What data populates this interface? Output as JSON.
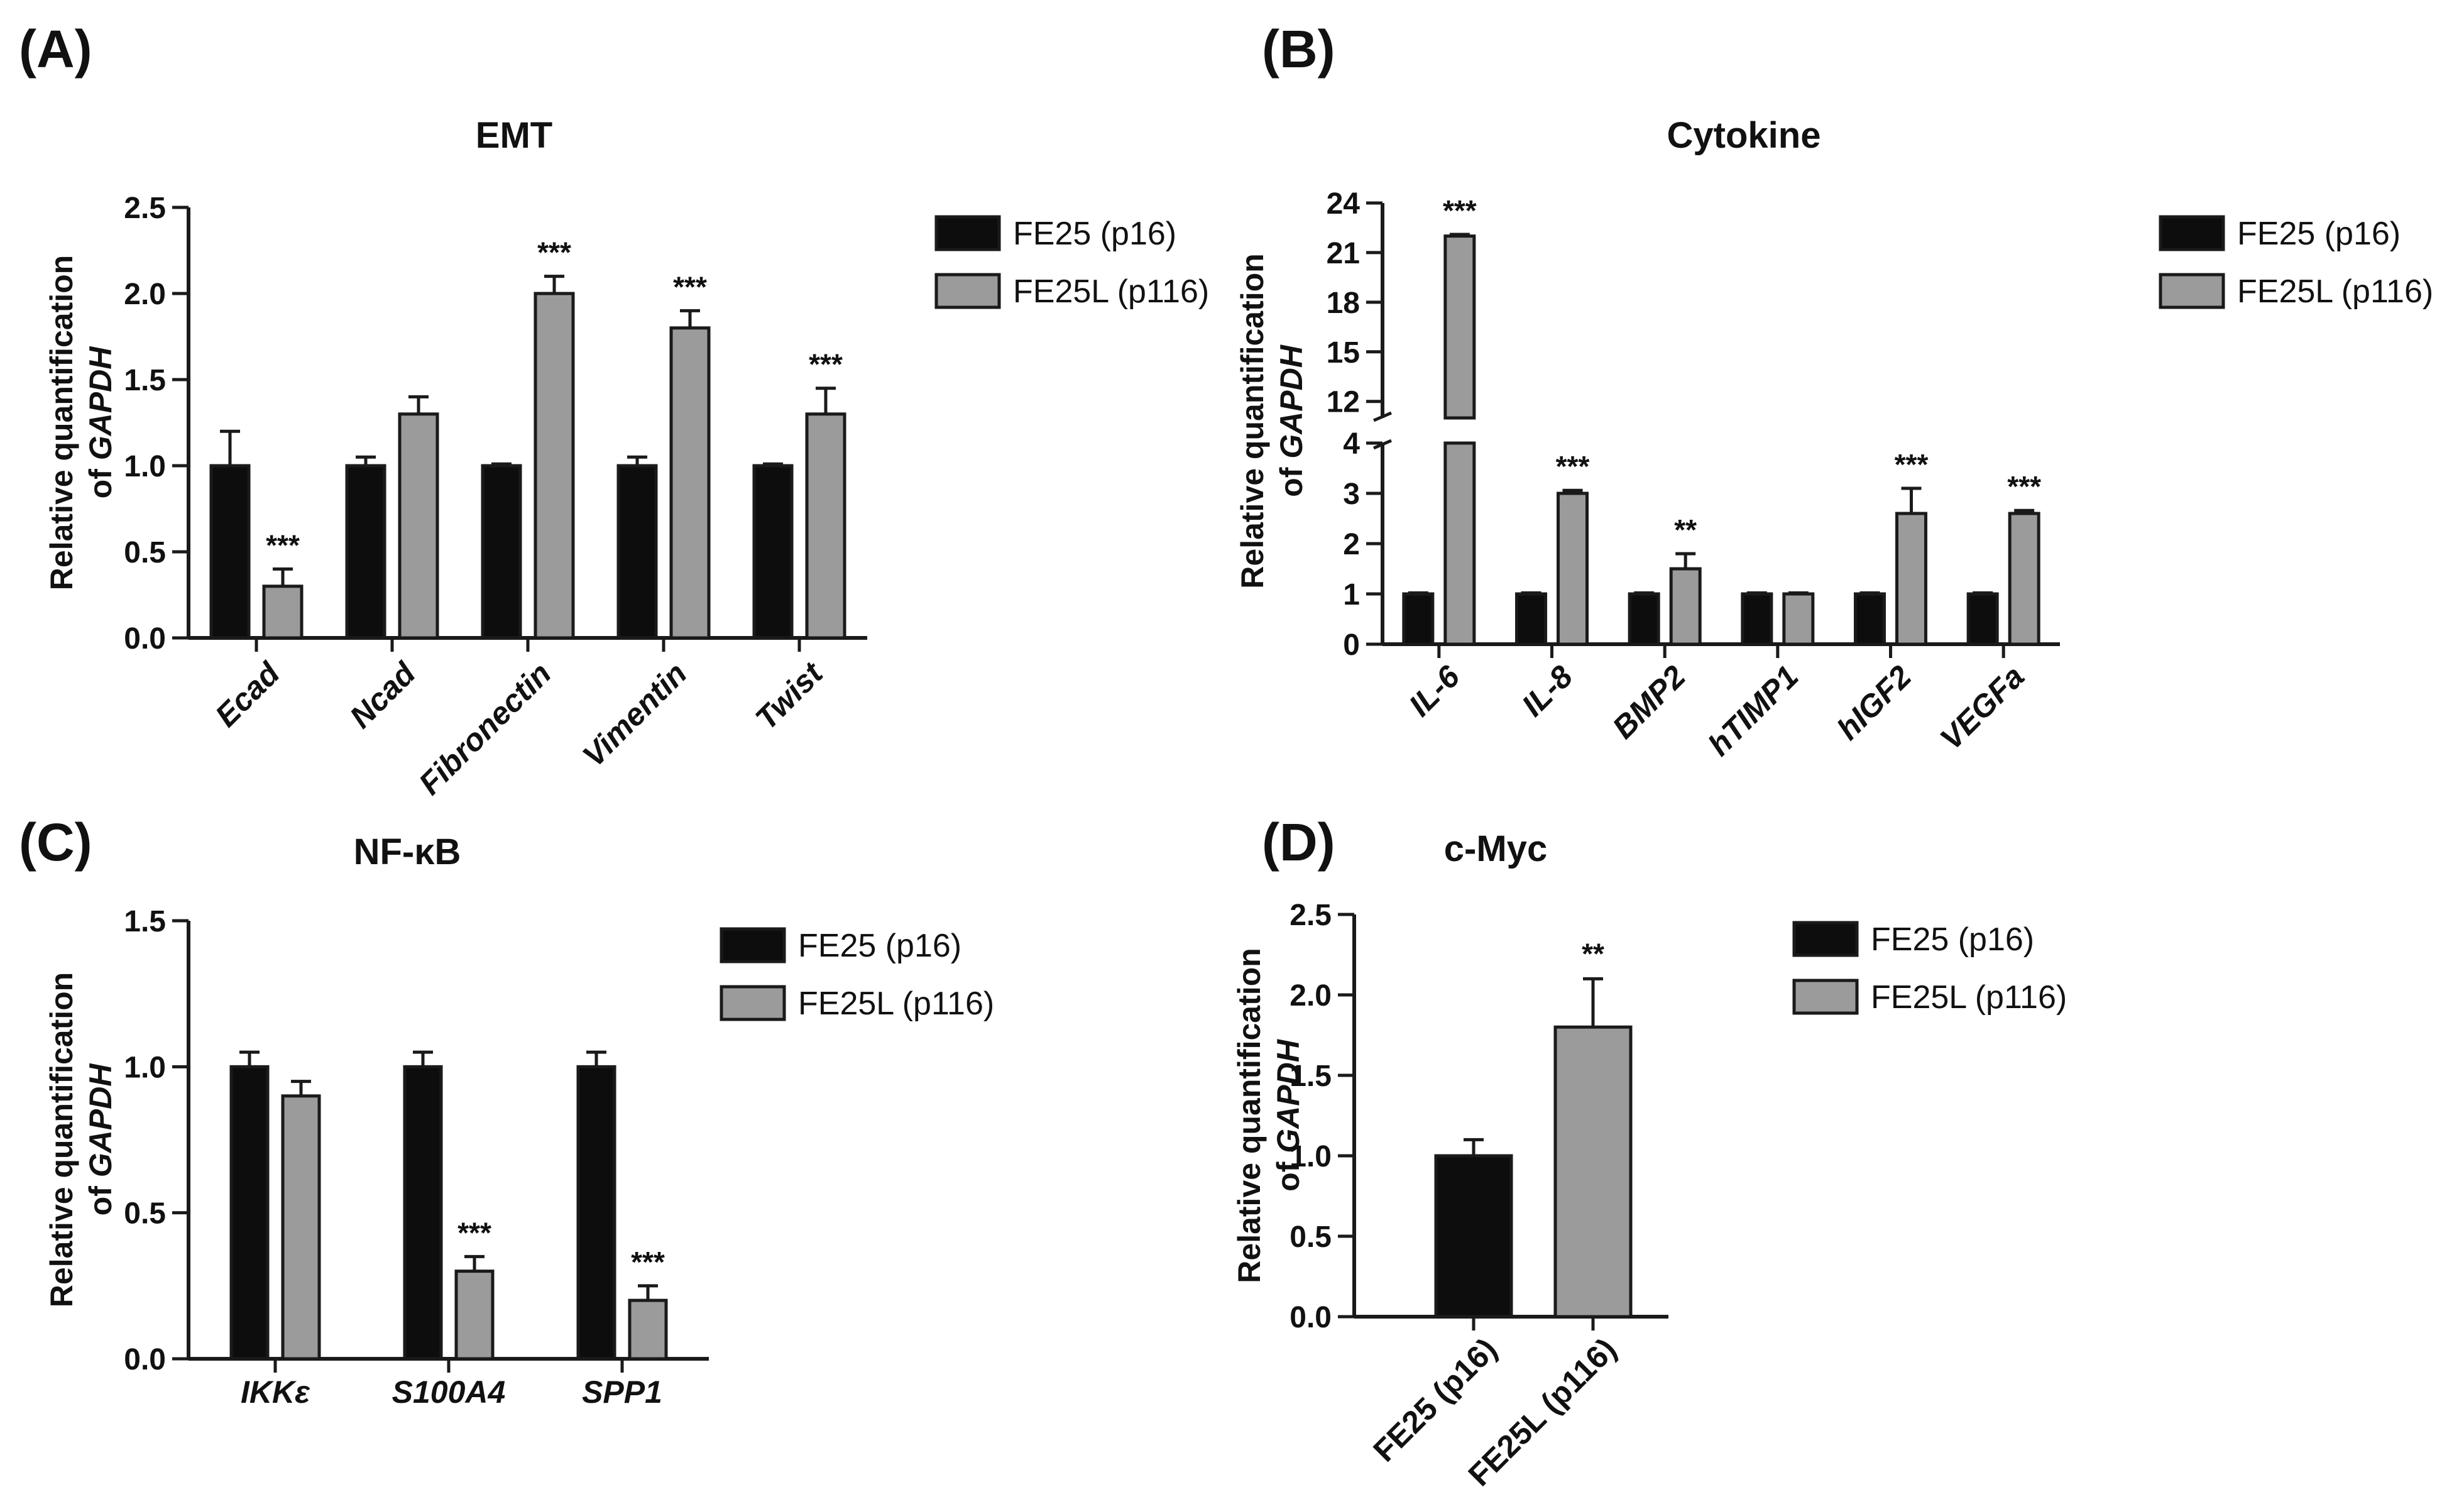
{
  "panels": {
    "A": {
      "label": "(A)"
    },
    "B": {
      "label": "(B)"
    },
    "C": {
      "label": "(C)"
    },
    "D": {
      "label": "(D)"
    }
  },
  "legend": {
    "series1": "FE25 (p16)",
    "series2": "FE25L (p116)"
  },
  "colors": {
    "series1": "#0d0d0d",
    "series2": "#9b9b9b",
    "axis": "#1a1a1a"
  },
  "chart_data": [
    {
      "id": "A",
      "type": "bar",
      "title": "EMT",
      "ylabel_line1": "Relative quantification",
      "ylabel_line2_prefix": "of ",
      "ylabel_line2_italic": "GAPDH",
      "ylim": [
        0,
        2.5
      ],
      "yticks": [
        "0.0",
        "0.5",
        "1.0",
        "1.5",
        "2.0",
        "2.5"
      ],
      "tick_values": [
        0,
        0.5,
        1.0,
        1.5,
        2.0,
        2.5
      ],
      "categories": [
        "Ecad",
        "Ncad",
        "Fibronectin",
        "Vimentin",
        "Twist"
      ],
      "series": [
        {
          "name": "FE25 (p16)",
          "values": [
            1.0,
            1.0,
            1.0,
            1.0,
            1.0
          ],
          "errors": [
            0.2,
            0.05,
            0.01,
            0.05,
            0.01
          ]
        },
        {
          "name": "FE25L (p116)",
          "values": [
            0.3,
            1.3,
            2.0,
            1.8,
            1.3
          ],
          "errors": [
            0.1,
            0.1,
            0.1,
            0.1,
            0.15
          ]
        }
      ],
      "significance": [
        "***",
        "",
        "***",
        "***",
        "***"
      ]
    },
    {
      "id": "B",
      "type": "bar",
      "title": "Cytokine",
      "ylabel_line1": "Relative quantification",
      "ylabel_line2_prefix": "of ",
      "ylabel_line2_italic": "GAPDH",
      "axis_break": {
        "lower": [
          0,
          4
        ],
        "upper": [
          11,
          24
        ]
      },
      "lower_ticks": [
        "0",
        "1",
        "2",
        "3",
        "4"
      ],
      "lower_tick_values": [
        0,
        1,
        2,
        3,
        4
      ],
      "upper_ticks": [
        "12",
        "15",
        "18",
        "21",
        "24"
      ],
      "upper_tick_values": [
        12,
        15,
        18,
        21,
        24
      ],
      "categories": [
        "IL-6",
        "IL-8",
        "BMP2",
        "hTIMP1",
        "hIGF2",
        "VEGFa"
      ],
      "series": [
        {
          "name": "FE25 (p16)",
          "values": [
            1.0,
            1.0,
            1.0,
            1.0,
            1.0,
            1.0
          ],
          "errors": [
            0.02,
            0.02,
            0.02,
            0.02,
            0.02,
            0.02
          ]
        },
        {
          "name": "FE25L (p116)",
          "values": [
            22.0,
            3.0,
            1.5,
            1.0,
            2.6,
            2.6
          ],
          "errors": [
            0.1,
            0.06,
            0.3,
            0.02,
            0.5,
            0.06
          ]
        }
      ],
      "significance": [
        "***",
        "***",
        "**",
        "",
        "***",
        "***"
      ]
    },
    {
      "id": "C",
      "type": "bar",
      "title": "NF-κB",
      "ylabel_line1": "Relative quantification",
      "ylabel_line2_prefix": "of ",
      "ylabel_line2_italic": "GAPDH",
      "ylim": [
        0,
        1.5
      ],
      "yticks": [
        "0.0",
        "0.5",
        "1.0",
        "1.5"
      ],
      "tick_values": [
        0,
        0.5,
        1.0,
        1.5
      ],
      "categories": [
        "IKKε",
        "S100A4",
        "SPP1"
      ],
      "series": [
        {
          "name": "FE25 (p16)",
          "values": [
            1.0,
            1.0,
            1.0
          ],
          "errors": [
            0.05,
            0.05,
            0.05
          ]
        },
        {
          "name": "FE25L (p116)",
          "values": [
            0.9,
            0.3,
            0.2
          ],
          "errors": [
            0.05,
            0.05,
            0.05
          ]
        }
      ],
      "significance": [
        "",
        "***",
        "***"
      ]
    },
    {
      "id": "D",
      "type": "bar",
      "title": "c-Myc",
      "ylabel_line1": "Relative quantification",
      "ylabel_line2_prefix": "of ",
      "ylabel_line2_italic": "GAPDH",
      "ylim": [
        0,
        2.5
      ],
      "yticks": [
        "0.0",
        "0.5",
        "1.0",
        "1.5",
        "2.0",
        "2.5"
      ],
      "tick_values": [
        0,
        0.5,
        1.0,
        1.5,
        2.0,
        2.5
      ],
      "categories": [
        "FE25 (p16)",
        "FE25L (p116)"
      ],
      "values": [
        1.0,
        1.8
      ],
      "errors": [
        0.1,
        0.3
      ],
      "significance": [
        "",
        "**"
      ]
    }
  ]
}
